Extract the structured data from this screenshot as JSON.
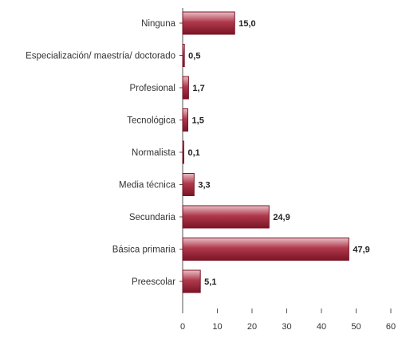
{
  "chart_data": {
    "type": "bar",
    "orientation": "horizontal",
    "categories": [
      "Ninguna",
      "Especialización/ maestría/ doctorado",
      "Profesional",
      "Tecnológica",
      "Normalista",
      "Media técnica",
      "Secundaria",
      "Básica primaria",
      "Preescolar"
    ],
    "values": [
      15.0,
      0.5,
      1.7,
      1.5,
      0.1,
      3.3,
      24.9,
      47.9,
      5.1
    ],
    "value_labels": [
      "15,0",
      "0,5",
      "1,7",
      "1,5",
      "0,1",
      "3,3",
      "24,9",
      "47,9",
      "5,1"
    ],
    "xlim": [
      0,
      60
    ],
    "xticks": [
      0,
      10,
      20,
      30,
      40,
      50,
      60
    ],
    "xtick_labels": [
      "0",
      "10",
      "20",
      "30",
      "40",
      "50",
      "60"
    ],
    "grid": false,
    "legend": "none",
    "colors": {
      "bar_dark": "#7a1426",
      "bar_light": "#e8c0c6",
      "bar_mid": "#b0394c",
      "axis": "#555555"
    }
  }
}
